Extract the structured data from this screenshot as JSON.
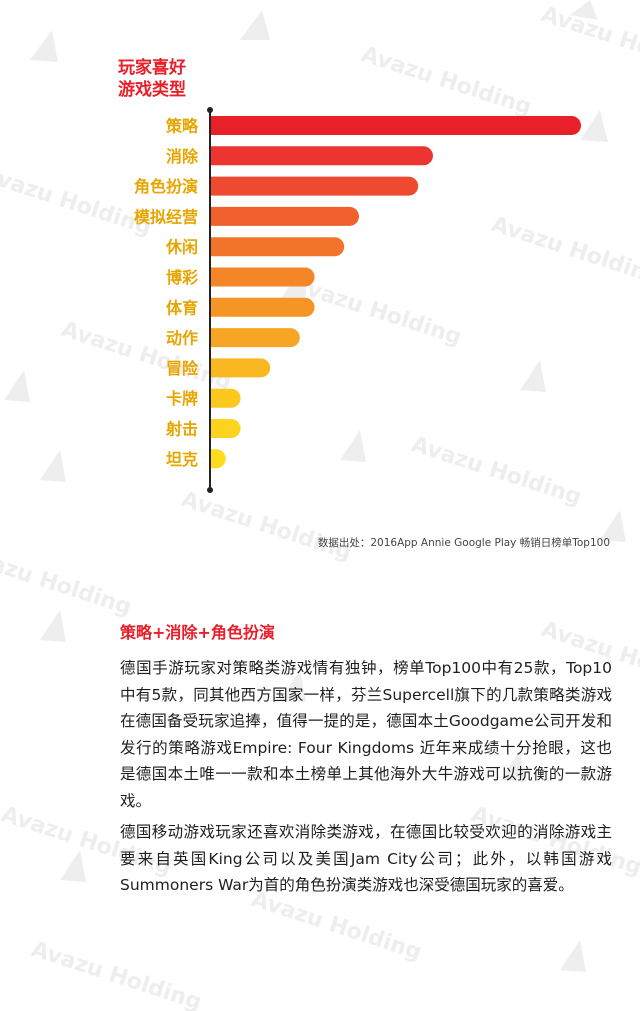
{
  "watermark": {
    "text": "Avazu Holding"
  },
  "chart_data": {
    "type": "bar",
    "orientation": "horizontal",
    "title_lines": [
      "玩家喜好",
      "游戏类型"
    ],
    "categories": [
      "策略",
      "消除",
      "角色扮演",
      "模拟经营",
      "休闲",
      "博彩",
      "体育",
      "动作",
      "冒险",
      "卡牌",
      "射击",
      "坦克"
    ],
    "values": [
      25,
      15,
      14,
      10,
      9,
      7,
      7,
      6,
      4,
      2,
      2,
      1
    ],
    "colors": [
      "#e8202a",
      "#ec3530",
      "#ee4a2f",
      "#f0602c",
      "#f2742a",
      "#f48628",
      "#f59526",
      "#f7a524",
      "#f9b822",
      "#fbc820",
      "#fcd31e",
      "#fddc1d"
    ],
    "label_color": "#e8a500",
    "axis": "y-axis line at left with dot ends",
    "grid": false,
    "legend": "none"
  },
  "source_text": "数据出处：2016App Annie Google Play 畅销日榜单Top100",
  "section_title": "策略+消除+角色扮演",
  "paragraphs": [
    "德国手游玩家对策略类游戏情有独钟，榜单Top100中有25款，Top10中有5款，同其他西方国家一样，芬兰Supercell旗下的几款策略类游戏在德国备受玩家追捧，值得一提的是，德国本土Goodgame公司开发和发行的策略游戏Empire: Four Kingdoms 近年来成绩十分抢眼，这也是德国本土唯一一款和本土榜单上其他海外大牛游戏可以抗衡的一款游戏。",
    "德国移动游戏玩家还喜欢消除类游戏，在德国比较受欢迎的消除游戏主要来自英国King公司以及美国Jam City公司；此外，以韩国游戏Summoners War为首的角色扮演类游戏也深受德国玩家的喜爱。"
  ]
}
